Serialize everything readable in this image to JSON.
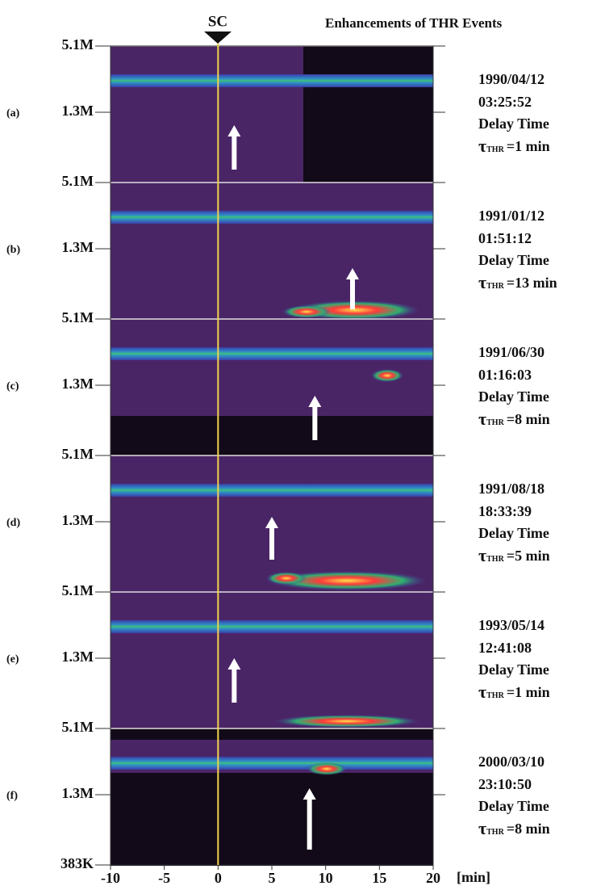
{
  "header": {
    "title": "Enhancements of THR Events",
    "marker": "SC"
  },
  "x_axis": {
    "xlim": [
      -10,
      20
    ],
    "ticks": [
      -10,
      -5,
      0,
      5,
      10,
      15,
      20
    ],
    "unit": "[min]"
  },
  "panels": [
    {
      "label": "(a)",
      "y_ticks": [
        "5.1M",
        "1.3M"
      ],
      "date": "1990/04/12",
      "time": "03:25:52",
      "delay_label": "Delay Time",
      "tau": "τ",
      "tau_sub": "THR",
      "delay": "=1 min"
    },
    {
      "label": "(b)",
      "y_ticks": [
        "5.1M",
        "1.3M"
      ],
      "date": "1991/01/12",
      "time": "01:51:12",
      "delay_label": "Delay Time",
      "tau": "τ",
      "tau_sub": "THR",
      "delay": "=13 min"
    },
    {
      "label": "(c)",
      "y_ticks": [
        "5.1M",
        "1.3M"
      ],
      "date": "1991/06/30",
      "time": "01:16:03",
      "delay_label": "Delay Time",
      "tau": "τ",
      "tau_sub": "THR",
      "delay": "=8 min"
    },
    {
      "label": "(d)",
      "y_ticks": [
        "5.1M",
        "1.3M"
      ],
      "date": "1991/08/18",
      "time": "18:33:39",
      "delay_label": "Delay Time",
      "tau": "τ",
      "tau_sub": "THR",
      "delay": "=5 min"
    },
    {
      "label": "(e)",
      "y_ticks": [
        "5.1M",
        "1.3M"
      ],
      "date": "1993/05/14",
      "time": "12:41:08",
      "delay_label": "Delay Time",
      "tau": "τ",
      "tau_sub": "THR",
      "delay": "=1 min"
    },
    {
      "label": "(f)",
      "y_ticks": [
        "5.1M",
        "1.3M"
      ],
      "date": "2000/03/10",
      "time": "23:10:50",
      "delay_label": "Delay Time",
      "tau": "τ",
      "tau_sub": "THR",
      "delay": "=8 min"
    }
  ],
  "bottom_tick": "383K"
}
